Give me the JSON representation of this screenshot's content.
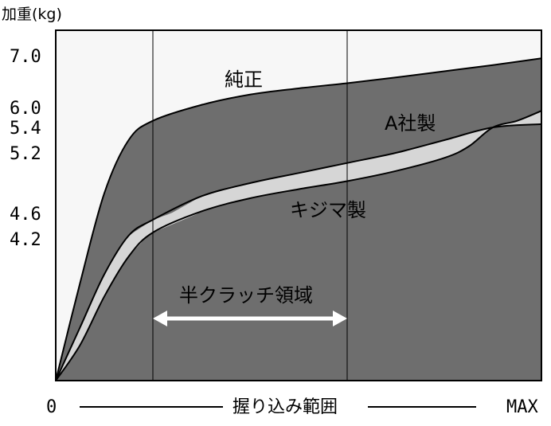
{
  "chart_data": {
    "type": "area",
    "ylabel": "加重(kg)",
    "xlabel": "握り込み範囲",
    "x_tick_start": "0",
    "x_tick_end": "MAX",
    "y_ticks": [
      "7.0",
      "6.0",
      "5.4",
      "5.2",
      "4.6",
      "4.2"
    ],
    "x_range": [
      0,
      1
    ],
    "series": [
      {
        "name": "純正",
        "x": [
          0,
          0.05,
          0.1,
          0.15,
          0.2,
          0.3,
          0.4,
          0.5,
          0.6,
          0.7,
          0.8,
          0.9,
          1.0
        ],
        "y": [
          2.6,
          3.7,
          4.8,
          5.3,
          5.6,
          6.05,
          6.25,
          6.37,
          6.47,
          6.58,
          6.7,
          6.82,
          6.95
        ]
      },
      {
        "name": "A社製",
        "x": [
          0,
          0.05,
          0.1,
          0.15,
          0.2,
          0.3,
          0.4,
          0.5,
          0.6,
          0.7,
          0.8,
          0.9,
          1.0
        ],
        "y": [
          2.6,
          3.2,
          3.8,
          4.25,
          4.5,
          4.77,
          4.9,
          5.0,
          5.1,
          5.2,
          5.3,
          5.4,
          5.5
        ]
      },
      {
        "name": "キジマ製",
        "x": [
          0,
          0.05,
          0.1,
          0.15,
          0.2,
          0.3,
          0.4,
          0.5,
          0.6,
          0.7,
          0.8,
          0.85,
          0.9,
          0.95,
          1.0
        ],
        "y": [
          2.6,
          3.0,
          3.55,
          4.0,
          4.3,
          4.62,
          4.75,
          4.84,
          4.92,
          5.02,
          5.15,
          5.25,
          5.4,
          5.6,
          5.9
        ]
      }
    ],
    "annotation": {
      "label": "半クラッチ領域",
      "x_start": 0.2,
      "x_end": 0.6
    },
    "vertical_lines_x": [
      0.2,
      0.6
    ],
    "colors": {
      "background": "#f7f7f7",
      "main_fill": "#6e6e6e",
      "band_fill": "#d6d6d6",
      "line": "#000000",
      "annotation": "#ffffff"
    }
  }
}
